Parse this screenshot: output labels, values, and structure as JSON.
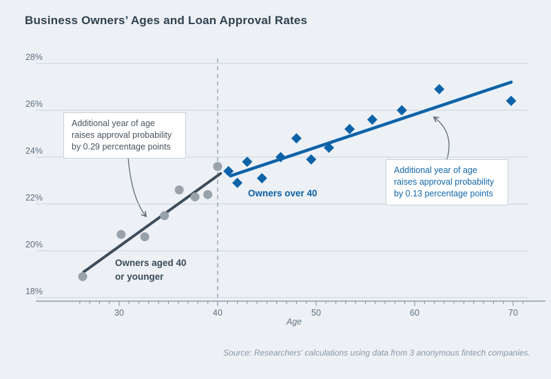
{
  "page": {
    "source_note": "Source: Researchers' calculations using data from 3 anonymous fintech companies."
  },
  "chart_data": {
    "type": "scatter",
    "title": "Business Owners’ Ages and Loan Approval Rates",
    "xlabel": "Age",
    "ylabel": "",
    "x_ticks": [
      30,
      40,
      50,
      60,
      70
    ],
    "y_ticks": [
      18,
      20,
      22,
      24,
      26,
      28
    ],
    "y_tick_suffix": "%",
    "xlim": [
      25,
      71.5
    ],
    "ylim": [
      18,
      28
    ],
    "grid": true,
    "legend_position": "inline-labels",
    "reference_line": {
      "axis": "x",
      "value": 40,
      "style": "dashed"
    },
    "colors": {
      "background": "#edf1f6",
      "gridline": "#ccd4de",
      "axis": "#7e8b99",
      "gray_points": "#99a2ab",
      "gray_trend": "#3f4c59",
      "blue": "#0e63a8",
      "dashed_line": "#9aa5b2",
      "arrow": "#5f6b77"
    },
    "series": [
      {
        "name": "Owners aged 40 or younger",
        "marker": "circle",
        "point_color": "#99a2ab",
        "trend_color": "#3f4c59",
        "points": [
          [
            26.3,
            18.9
          ],
          [
            30.2,
            20.7
          ],
          [
            32.6,
            20.6
          ],
          [
            34.6,
            21.5
          ],
          [
            36.1,
            22.6
          ],
          [
            37.7,
            22.3
          ],
          [
            39.0,
            22.4
          ],
          [
            40.0,
            23.6
          ]
        ],
        "trend": [
          [
            26.4,
            19.1
          ],
          [
            40.3,
            23.3
          ]
        ]
      },
      {
        "name": "Owners over 40",
        "marker": "diamond",
        "point_color": "#0e63a8",
        "trend_color": "#0e63a8",
        "points": [
          [
            41.1,
            23.4
          ],
          [
            42.0,
            22.9
          ],
          [
            43.0,
            23.8
          ],
          [
            44.5,
            23.1
          ],
          [
            46.4,
            24.0
          ],
          [
            48.0,
            24.8
          ],
          [
            49.5,
            23.9
          ],
          [
            51.3,
            24.4
          ],
          [
            53.4,
            25.2
          ],
          [
            55.7,
            25.6
          ],
          [
            58.7,
            26.0
          ],
          [
            62.5,
            26.9
          ],
          [
            69.8,
            26.4
          ]
        ],
        "trend": [
          [
            41.3,
            23.2
          ],
          [
            69.8,
            27.2
          ]
        ]
      }
    ],
    "annotations": [
      {
        "text": "Additional year of age raises approval probability by 0.29 percentage points"
      },
      {
        "text": "Additional year of age raises approval probability by 0.13 percentage points"
      }
    ]
  }
}
